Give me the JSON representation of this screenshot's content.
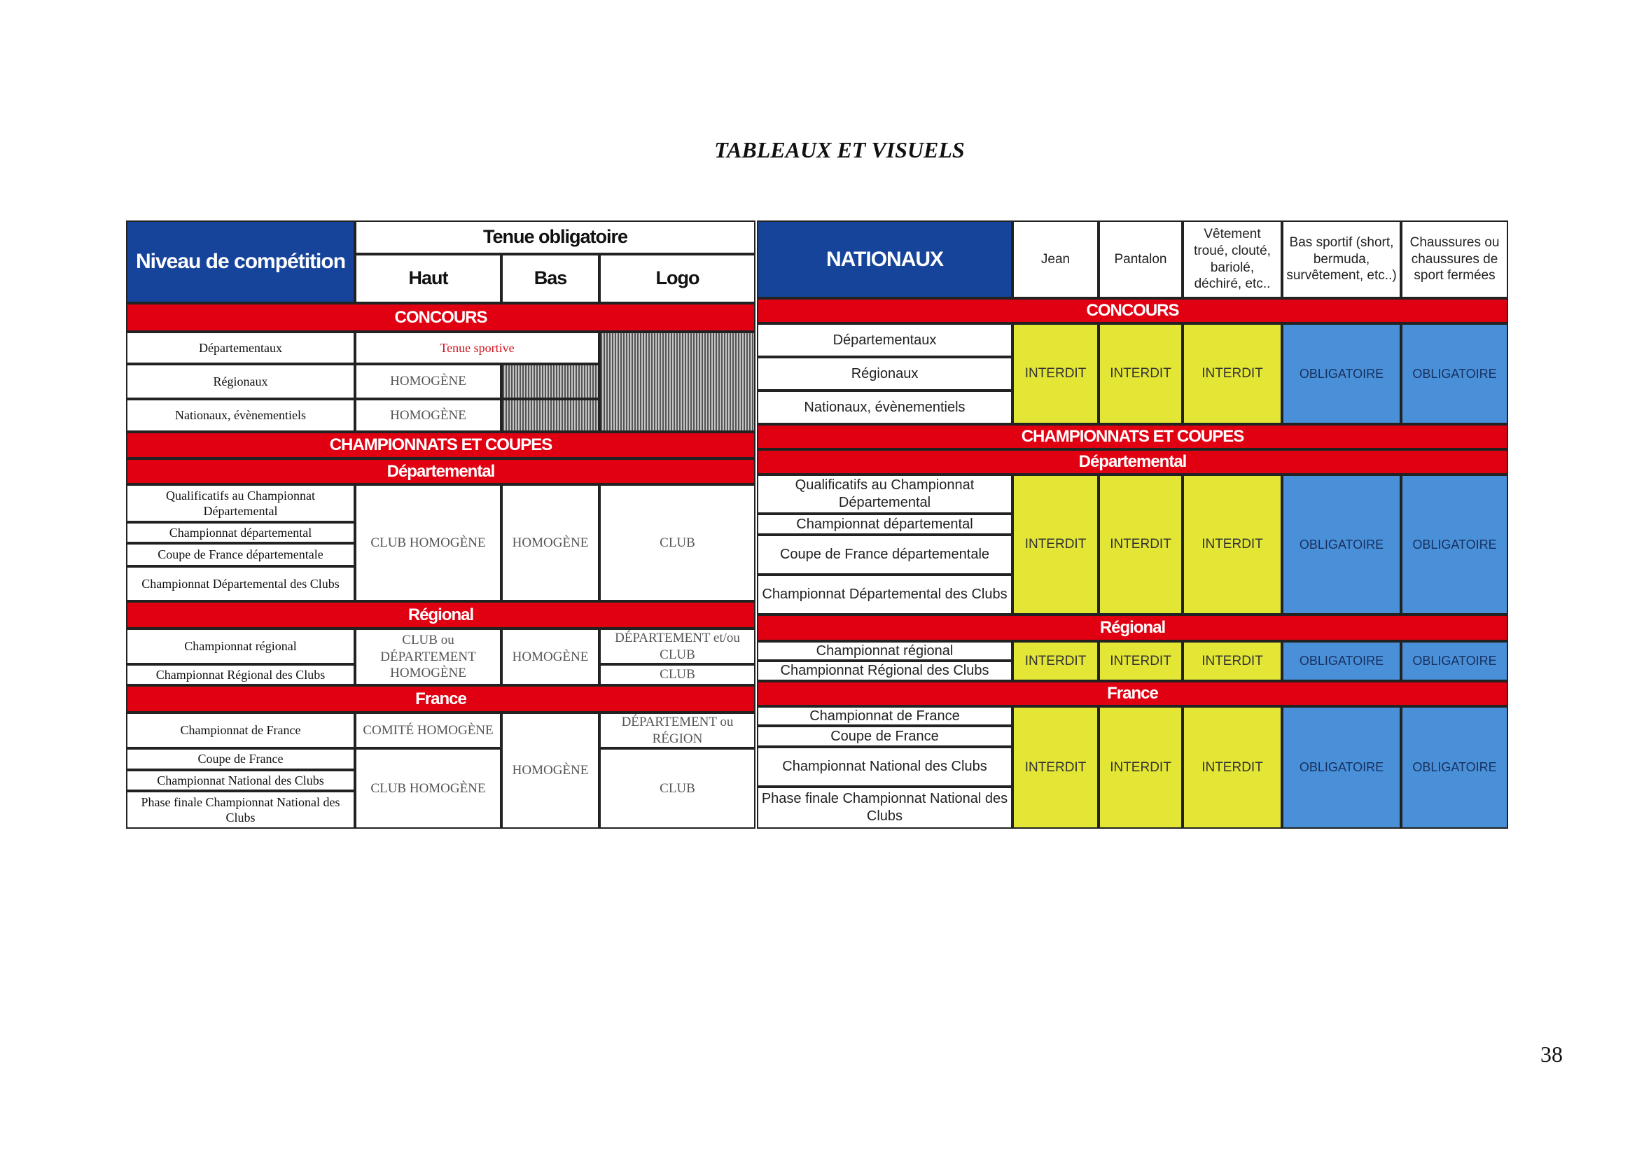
{
  "page_title": "TABLEAUX ET VISUELS",
  "page_number": "38",
  "colors": {
    "header_blue": "#16449a",
    "section_red": "#e00012",
    "interdit_yellow": "#e3e635",
    "obligatoire_blue": "#4a90d9"
  },
  "left": {
    "header": {
      "level": "Niveau de compétition",
      "tenue": "Tenue obligatoire",
      "haut": "Haut",
      "bas": "Bas",
      "logo": "Logo"
    },
    "concours": {
      "label": "CONCOURS",
      "levels": [
        "Départementaux",
        "Régionaux",
        "Nationaux, évènementiels"
      ],
      "tenue_sportive": "Tenue sportive",
      "haut": [
        "HOMOGÈNE",
        "HOMOGÈNE"
      ]
    },
    "champ_label": "CHAMPIONNATS ET COUPES",
    "departemental": {
      "label": "Départemental",
      "levels": [
        "Qualificatifs au Championnat Départemental",
        "Championnat départemental",
        "Coupe de France départementale",
        "Championnat Départemental des Clubs"
      ],
      "haut": "CLUB HOMOGÈNE",
      "bas": "HOMOGÈNE",
      "logo": "CLUB"
    },
    "regional": {
      "label": "Régional",
      "levels": [
        "Championnat régional",
        "Championnat Régional des Clubs"
      ],
      "haut": "CLUB ou DÉPARTEMENT HOMOGÈNE",
      "bas": "HOMOGÈNE",
      "logo": [
        "DÉPARTEMENT et/ou CLUB",
        "CLUB"
      ]
    },
    "france": {
      "label": "France",
      "levels": [
        "Championnat de France",
        "Coupe de France",
        "Championnat National des Clubs",
        "Phase finale Championnat National des Clubs"
      ],
      "haut": [
        "COMITÉ HOMOGÈNE",
        "CLUB HOMOGÈNE"
      ],
      "bas": "HOMOGÈNE",
      "logo": [
        "DÉPARTEMENT ou RÉGION",
        "CLUB"
      ]
    }
  },
  "right": {
    "header": {
      "title": "NATIONAUX",
      "columns": [
        "Jean",
        "Pantalon",
        "Vêtement troué, clouté, bariolé, déchiré, etc..",
        "Bas sportif (short, bermuda, survêtement, etc..)",
        "Chaussures ou chaussures de sport fermées"
      ]
    },
    "concours": {
      "label": "CONCOURS",
      "levels": [
        "Départementaux",
        "Régionaux",
        "Nationaux, évènementiels"
      ],
      "values": [
        "INTERDIT",
        "INTERDIT",
        "INTERDIT",
        "OBLIGATOIRE",
        "OBLIGATOIRE"
      ]
    },
    "champ_label": "CHAMPIONNATS ET COUPES",
    "departemental": {
      "label": "Départemental",
      "levels": [
        "Qualificatifs au Championnat Départemental",
        "Championnat départemental",
        "Coupe de France départementale",
        "Championnat Départemental des Clubs"
      ],
      "values": [
        "INTERDIT",
        "INTERDIT",
        "INTERDIT",
        "OBLIGATOIRE",
        "OBLIGATOIRE"
      ]
    },
    "regional": {
      "label": "Régional",
      "levels": [
        "Championnat régional",
        "Championnat Régional des Clubs"
      ],
      "values": [
        "INTERDIT",
        "INTERDIT",
        "INTERDIT",
        "OBLIGATOIRE",
        "OBLIGATOIRE"
      ]
    },
    "france": {
      "label": "France",
      "levels": [
        "Championnat de France",
        "Coupe de France",
        "Championnat National des Clubs",
        "Phase finale Championnat National des Clubs"
      ],
      "values": [
        "INTERDIT",
        "INTERDIT",
        "INTERDIT",
        "OBLIGATOIRE",
        "OBLIGATOIRE"
      ]
    }
  }
}
